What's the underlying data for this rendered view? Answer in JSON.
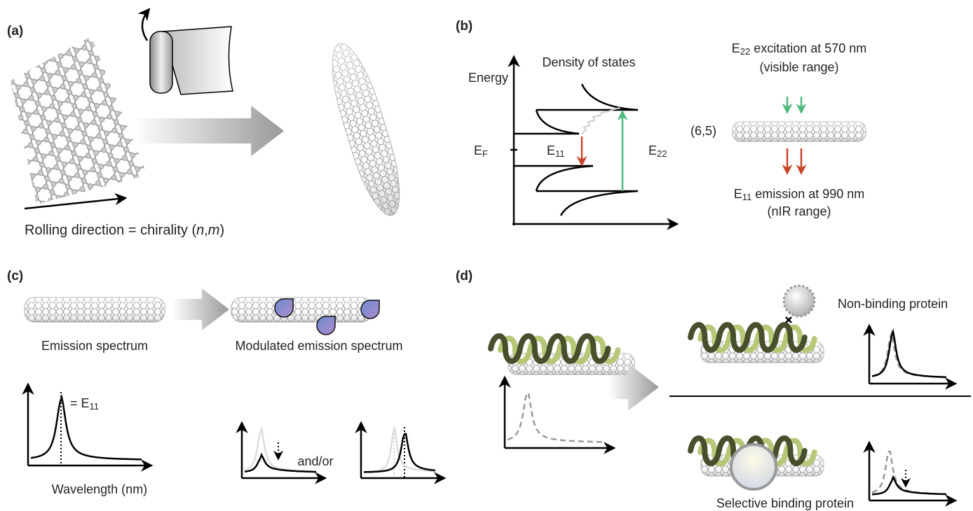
{
  "panels": {
    "a": {
      "label": "(a)",
      "caption": [
        "Rolling direction = chirality (",
        "n",
        ",",
        "m",
        ")"
      ]
    },
    "b": {
      "label": "(b)",
      "energy_axis": "Energy",
      "dos_title": "Density of states",
      "fermi": {
        "symbol": "E",
        "sub": "F"
      },
      "e11": {
        "symbol": "E",
        "sub": "11"
      },
      "e22": {
        "symbol": "E",
        "sub": "22"
      },
      "chirality": "(6,5)",
      "excitation": {
        "symbol": "E",
        "sub": "22",
        "text": " excitation at 570 nm",
        "range": "(visible range)"
      },
      "emission": {
        "symbol": "E",
        "sub": "11",
        "text": " emission at 990 nm",
        "range": "(nIR range)"
      }
    },
    "c": {
      "label": "(c)",
      "emission_spectrum": "Emission spectrum",
      "peak": {
        "symbol": "= E",
        "sub": "11"
      },
      "x_axis": "Wavelength (nm)",
      "modulated": "Modulated emission spectrum",
      "conjunction": "and/or"
    },
    "d": {
      "label": "(d)",
      "non_binding": "Non-binding protein",
      "selective": "Selective binding protein"
    }
  }
}
